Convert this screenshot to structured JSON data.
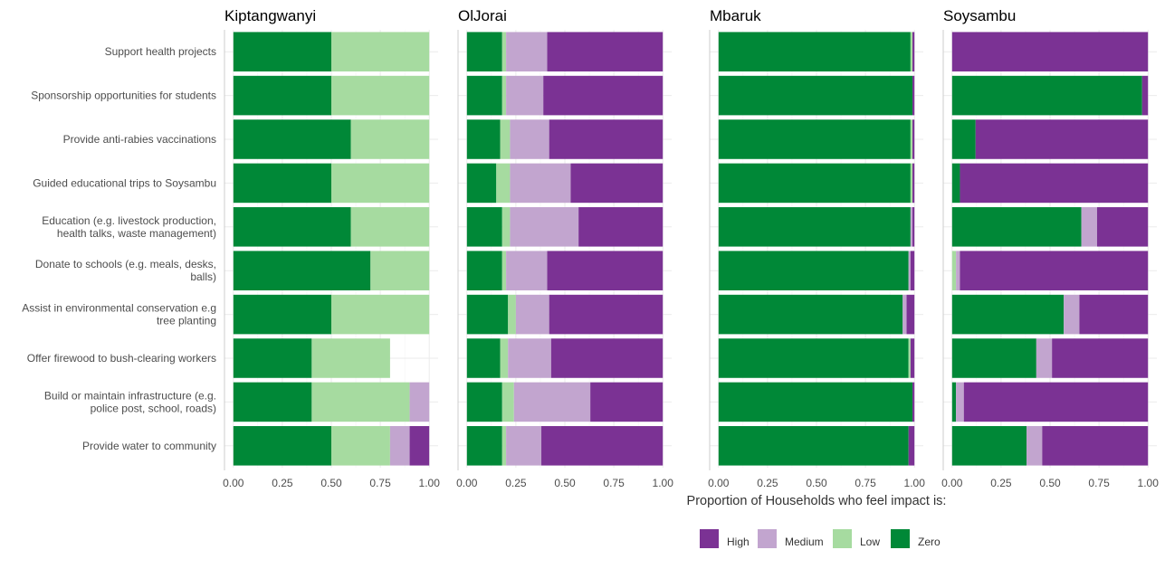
{
  "chart_data": {
    "type": "bar",
    "orientation": "horizontal",
    "stacked": true,
    "categories": [
      "Support health projects",
      "Sponsorship opportunities for students",
      "Provide anti-rabies vaccinations",
      "Guided educational trips to Soysambu",
      "Education (e.g. livestock production,\nhealth talks, waste management)",
      "Donate to schools (e.g. meals, desks,\nballs)",
      "Assist in environmental conservation e.g\ntree planting",
      "Offer firewood to bush-clearing workers",
      "Build or maintain infrastructure (e.g.\npolice post, school, roads)",
      "Provide water to community"
    ],
    "stack_order": [
      "Zero",
      "Low",
      "Medium",
      "High"
    ],
    "colors": {
      "High": "#7b3294",
      "Medium": "#c2a5cf",
      "Low": "#a6dba0",
      "Zero": "#008837"
    },
    "xlim": [
      0,
      1
    ],
    "xticks": [
      "0.00",
      "0.25",
      "0.50",
      "0.75",
      "1.00"
    ],
    "xlabel": "Proportion of Households who feel impact is:",
    "legend": {
      "position": "bottom",
      "entries": [
        "High",
        "Medium",
        "Low",
        "Zero"
      ]
    },
    "grid": true,
    "panels": [
      {
        "title": "Kiptangwanyi",
        "values": [
          [
            0.5,
            0.5,
            0.0,
            0.0
          ],
          [
            0.5,
            0.5,
            0.0,
            0.0
          ],
          [
            0.6,
            0.4,
            0.0,
            0.0
          ],
          [
            0.5,
            0.5,
            0.0,
            0.0
          ],
          [
            0.6,
            0.4,
            0.0,
            0.0
          ],
          [
            0.7,
            0.3,
            0.0,
            0.0
          ],
          [
            0.5,
            0.5,
            0.0,
            0.0
          ],
          [
            0.4,
            0.4,
            0.0,
            0.0
          ],
          [
            0.4,
            0.5,
            0.1,
            0.0
          ],
          [
            0.5,
            0.3,
            0.1,
            0.1
          ]
        ]
      },
      {
        "title": "OlJorai",
        "values": [
          [
            0.18,
            0.02,
            0.21,
            0.59
          ],
          [
            0.18,
            0.02,
            0.19,
            0.61
          ],
          [
            0.17,
            0.05,
            0.2,
            0.58
          ],
          [
            0.15,
            0.07,
            0.31,
            0.47
          ],
          [
            0.18,
            0.04,
            0.35,
            0.43
          ],
          [
            0.18,
            0.02,
            0.21,
            0.59
          ],
          [
            0.21,
            0.04,
            0.17,
            0.58
          ],
          [
            0.17,
            0.04,
            0.22,
            0.57
          ],
          [
            0.18,
            0.06,
            0.39,
            0.37
          ],
          [
            0.18,
            0.02,
            0.18,
            0.62
          ]
        ]
      },
      {
        "title": "Mbaruk",
        "values": [
          [
            0.98,
            0.01,
            0.0,
            0.01
          ],
          [
            0.99,
            0.0,
            0.0,
            0.01
          ],
          [
            0.98,
            0.01,
            0.0,
            0.01
          ],
          [
            0.98,
            0.01,
            0.0,
            0.01
          ],
          [
            0.98,
            0.0,
            0.01,
            0.01
          ],
          [
            0.97,
            0.0,
            0.01,
            0.02
          ],
          [
            0.94,
            0.0,
            0.02,
            0.04
          ],
          [
            0.97,
            0.01,
            0.0,
            0.02
          ],
          [
            0.99,
            0.0,
            0.0,
            0.01
          ],
          [
            0.97,
            0.0,
            0.0,
            0.03
          ]
        ]
      },
      {
        "title": "Soysambu",
        "values": [
          [
            0.0,
            0.0,
            0.0,
            1.0
          ],
          [
            0.97,
            0.0,
            0.0,
            0.03
          ],
          [
            0.12,
            0.0,
            0.0,
            0.88
          ],
          [
            0.04,
            0.0,
            0.0,
            0.96
          ],
          [
            0.66,
            0.0,
            0.08,
            0.26
          ],
          [
            0.0,
            0.02,
            0.02,
            0.96
          ],
          [
            0.57,
            0.0,
            0.08,
            0.35
          ],
          [
            0.43,
            0.0,
            0.08,
            0.49
          ],
          [
            0.02,
            0.0,
            0.04,
            0.94
          ],
          [
            0.38,
            0.0,
            0.08,
            0.54
          ]
        ]
      }
    ]
  }
}
